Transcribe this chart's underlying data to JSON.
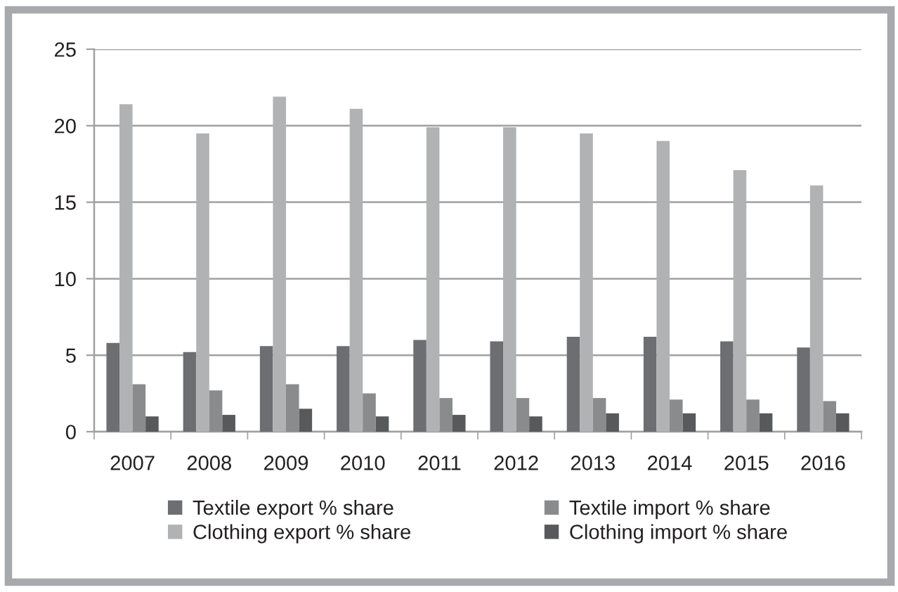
{
  "chart_data": {
    "type": "bar",
    "categories": [
      "2007",
      "2008",
      "2009",
      "2010",
      "2011",
      "2012",
      "2013",
      "2014",
      "2015",
      "2016"
    ],
    "series": [
      {
        "name": "Textile export % share",
        "color": "#6d6e71",
        "values": [
          5.8,
          5.2,
          5.6,
          5.6,
          6.0,
          5.9,
          6.2,
          6.2,
          5.9,
          5.5
        ]
      },
      {
        "name": "Clothing export % share",
        "color": "#b1b2b4",
        "values": [
          21.4,
          19.5,
          21.9,
          21.1,
          19.9,
          19.9,
          19.5,
          19.0,
          17.1,
          16.1
        ]
      },
      {
        "name": "Textile import % share",
        "color": "#8a8b8d",
        "values": [
          3.1,
          2.7,
          3.1,
          2.5,
          2.2,
          2.2,
          2.2,
          2.1,
          2.1,
          2.0
        ]
      },
      {
        "name": "Clothing import % share",
        "color": "#58595b",
        "values": [
          1.0,
          1.1,
          1.5,
          1.0,
          1.1,
          1.0,
          1.2,
          1.2,
          1.2,
          1.2
        ]
      }
    ],
    "ylim": [
      0,
      25
    ],
    "yticks": [
      0,
      5,
      10,
      15,
      20,
      25
    ],
    "grid": "y",
    "legend": "bottom"
  }
}
